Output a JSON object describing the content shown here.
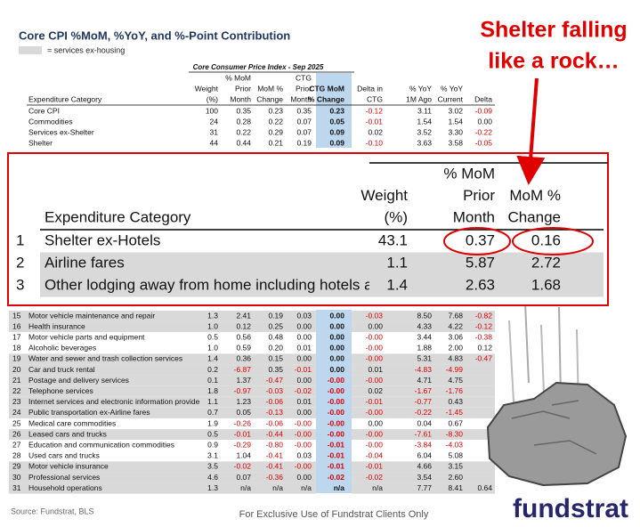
{
  "title": "Core CPI %MoM, %YoY, and %-Point Contribution",
  "legend": {
    "label": "= services ex-housing"
  },
  "table": {
    "caption": "Core Consumer Price Index - Sep 2025",
    "columns": [
      [
        "Expenditure Category"
      ],
      [
        "Weight",
        "(%)"
      ],
      [
        "% MoM",
        "Prior",
        "Month"
      ],
      [
        "MoM %",
        "Change"
      ],
      [
        "CTG",
        "Prior",
        "Month"
      ],
      [
        "CTG MoM",
        "% Change"
      ],
      [
        "Delta in",
        "CTG"
      ],
      [
        "% YoY",
        "1M Ago"
      ],
      [
        "% YoY",
        "Current"
      ],
      [
        "Delta"
      ]
    ],
    "summary_rows": [
      {
        "category": "Core CPI",
        "cells": [
          "100",
          "0.35",
          "0.23",
          "0.35",
          "0.23",
          "-0.12",
          "3.11",
          "3.02",
          "-0.09"
        ]
      },
      {
        "category": "Commodities",
        "cells": [
          "24",
          "0.28",
          "0.22",
          "0.07",
          "0.05",
          "-0.01",
          "1.54",
          "1.54",
          "0.00"
        ]
      },
      {
        "category": "Services ex-Shelter",
        "cells": [
          "31",
          "0.22",
          "0.29",
          "0.07",
          "0.09",
          "0.02",
          "3.52",
          "3.30",
          "-0.22"
        ]
      },
      {
        "category": "Shelter",
        "cells": [
          "44",
          "0.44",
          "0.21",
          "0.19",
          "0.09",
          "-0.10",
          "3.63",
          "3.58",
          "-0.05"
        ]
      }
    ],
    "rows": [
      {
        "num": "15",
        "category": "Motor vehicle maintenance and repair",
        "shaded": true,
        "cells": [
          "1.3",
          "2.41",
          "0.19",
          "0.03",
          "0.00",
          "-0.03",
          "8.50",
          "7.68",
          "-0.82"
        ]
      },
      {
        "num": "16",
        "category": "Health insurance",
        "shaded": true,
        "cells": [
          "1.0",
          "0.12",
          "0.25",
          "0.00",
          "0.00",
          "0.00",
          "4.33",
          "4.22",
          "-0.12"
        ]
      },
      {
        "num": "17",
        "category": "Motor vehicle parts and equipment",
        "shaded": false,
        "cells": [
          "0.5",
          "0.56",
          "0.48",
          "0.00",
          "0.00",
          "-0.00",
          "3.44",
          "3.06",
          "-0.38"
        ]
      },
      {
        "num": "18",
        "category": "Alcoholic beverages",
        "shaded": false,
        "cells": [
          "1.0",
          "0.59",
          "0.20",
          "0.01",
          "0.00",
          "-0.00",
          "1.88",
          "2.00",
          "0.12"
        ]
      },
      {
        "num": "19",
        "category": "Water and sewer and trash collection services",
        "shaded": true,
        "cells": [
          "1.4",
          "0.36",
          "0.15",
          "0.00",
          "0.00",
          "-0.00",
          "5.31",
          "4.83",
          "-0.47"
        ]
      },
      {
        "num": "20",
        "category": "Car and truck rental",
        "shaded": true,
        "cells": [
          "0.2",
          "-6.87",
          "0.35",
          "-0.01",
          "0.00",
          "0.01",
          "-4.83",
          "-4.99",
          null
        ]
      },
      {
        "num": "21",
        "category": "Postage and delivery services",
        "shaded": true,
        "cells": [
          "0.1",
          "1.37",
          "-0.47",
          "0.00",
          "-0.00",
          "-0.00",
          "4.71",
          "4.75",
          null
        ]
      },
      {
        "num": "22",
        "category": "Telephone services",
        "shaded": true,
        "cells": [
          "1.8",
          "-0.97",
          "-0.03",
          "-0.02",
          "-0.00",
          "0.02",
          "-1.67",
          "-1.76",
          null
        ]
      },
      {
        "num": "23",
        "category": "Internet services and electronic information provide",
        "shaded": true,
        "cells": [
          "1.1",
          "1.23",
          "-0.06",
          "0.01",
          "-0.00",
          "-0.01",
          "-0.77",
          "0.43",
          null
        ]
      },
      {
        "num": "24",
        "category": "Public transportation ex-Airline fares",
        "shaded": true,
        "cells": [
          "0.7",
          "0.05",
          "-0.13",
          "0.00",
          "-0.00",
          "-0.00",
          "-0.22",
          "-1.45",
          null
        ]
      },
      {
        "num": "25",
        "category": "Medical care commodities",
        "shaded": false,
        "cells": [
          "1.9",
          "-0.26",
          "-0.06",
          "-0.00",
          "-0.00",
          "0.00",
          "0.04",
          "0.67",
          null
        ]
      },
      {
        "num": "26",
        "category": "Leased cars and trucks",
        "shaded": true,
        "cells": [
          "0.5",
          "-0.01",
          "-0.44",
          "-0.00",
          "-0.00",
          "-0.00",
          "-7.61",
          "-8.30",
          null
        ]
      },
      {
        "num": "27",
        "category": "Education and communication commodities",
        "shaded": false,
        "cells": [
          "0.9",
          "-0.29",
          "-0.80",
          "-0.00",
          "-0.01",
          "-0.00",
          "-3.84",
          "-4.03",
          null
        ]
      },
      {
        "num": "28",
        "category": "Used cars and trucks",
        "shaded": false,
        "cells": [
          "3.1",
          "1.04",
          "-0.41",
          "0.03",
          "-0.01",
          "-0.04",
          "6.04",
          "5.08",
          null
        ]
      },
      {
        "num": "29",
        "category": "Motor vehicle insurance",
        "shaded": true,
        "cells": [
          "3.5",
          "-0.02",
          "-0.41",
          "-0.00",
          "-0.01",
          "-0.01",
          "4.66",
          "3.15",
          null
        ]
      },
      {
        "num": "30",
        "category": "Professional services",
        "shaded": true,
        "cells": [
          "4.6",
          "0.07",
          "-0.36",
          "0.00",
          "-0.02",
          "-0.02",
          "3.54",
          "2.60",
          null
        ]
      },
      {
        "num": "31",
        "category": "Household operations",
        "shaded": true,
        "cells": [
          "1.3",
          "n/a",
          "n/a",
          "n/a",
          "n/a",
          "n/a",
          "7.77",
          "8.41",
          "0.64"
        ]
      }
    ]
  },
  "zoom": {
    "columns": [
      [
        "Expenditure Category"
      ],
      [
        "Weight",
        "(%)"
      ],
      [
        "% MoM",
        "Prior",
        "Month"
      ],
      [
        "MoM %",
        "Change"
      ]
    ],
    "rows": [
      {
        "num": "1",
        "category": "Shelter ex-Hotels",
        "shaded": false,
        "cells": [
          "43.1",
          "0.37",
          "0.16"
        ]
      },
      {
        "num": "2",
        "category": "Airline fares",
        "shaded": true,
        "cells": [
          "1.1",
          "5.87",
          "2.72"
        ]
      },
      {
        "num": "3",
        "category": "Other lodging away from home including hotels and",
        "shaded": true,
        "cells": [
          "1.4",
          "2.63",
          "1.68"
        ]
      }
    ]
  },
  "callout": [
    "Shelter falling",
    "like a rock…"
  ],
  "footer": {
    "source": "Source: Fundstrat, BLS",
    "disclaimer": "For Exclusive Use of Fundstrat Clients Only",
    "logo": "fundstrat"
  }
}
